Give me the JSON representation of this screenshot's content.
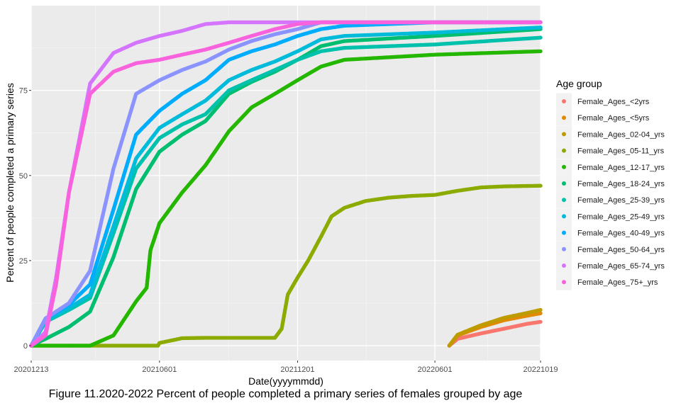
{
  "chart_data": {
    "type": "scatter",
    "xlabel": "Date(yyyymmdd)",
    "ylabel": "Percent of people completed a primary series",
    "x_ticks": [
      "20201213",
      "20210601",
      "20211201",
      "20220601",
      "20221019"
    ],
    "y_ticks": [
      0,
      25,
      50,
      75
    ],
    "xlim": [
      "20201213",
      "20221019"
    ],
    "ylim": [
      0,
      100
    ],
    "grid": true,
    "legend_title": "Age group",
    "legend_position": "right",
    "series": [
      {
        "name": "Female_Ages_<2yrs",
        "color": "#F8766D",
        "points": [
          [
            "20220620",
            0
          ],
          [
            "20220701",
            2
          ],
          [
            "20220801",
            3.6
          ],
          [
            "20220901",
            5
          ],
          [
            "20221001",
            6.4
          ],
          [
            "20221019",
            7
          ]
        ]
      },
      {
        "name": "Female_Ages_<5yrs",
        "color": "#E18A00",
        "points": [
          [
            "20220620",
            0
          ],
          [
            "20220701",
            3
          ],
          [
            "20220801",
            5.5
          ],
          [
            "20220901",
            7.5
          ],
          [
            "20221001",
            8.8
          ],
          [
            "20221019",
            9.5
          ]
        ]
      },
      {
        "name": "Female_Ages_02-04_yrs",
        "color": "#BE9C00",
        "points": [
          [
            "20220620",
            0
          ],
          [
            "20220701",
            3.2
          ],
          [
            "20220801",
            6
          ],
          [
            "20220901",
            8.2
          ],
          [
            "20221001",
            9.6
          ],
          [
            "20221019",
            10.5
          ]
        ]
      },
      {
        "name": "Female_Ages_05-11_yrs",
        "color": "#8CAB00",
        "points": [
          [
            "20201213",
            0
          ],
          [
            "20210530",
            0
          ],
          [
            "20210601",
            0.8
          ],
          [
            "20210701",
            2.2
          ],
          [
            "20210801",
            2.3
          ],
          [
            "20210901",
            2.3
          ],
          [
            "20211101",
            2.3
          ],
          [
            "20211110",
            5
          ],
          [
            "20211118",
            15
          ],
          [
            "20211201",
            20
          ],
          [
            "20211215",
            25
          ],
          [
            "20220101",
            32
          ],
          [
            "20220115",
            38
          ],
          [
            "20220201",
            40.5
          ],
          [
            "20220301",
            42.5
          ],
          [
            "20220401",
            43.5
          ],
          [
            "20220501",
            44
          ],
          [
            "20220601",
            44.3
          ],
          [
            "20220701",
            45.5
          ],
          [
            "20220801",
            46.5
          ],
          [
            "20220901",
            46.8
          ],
          [
            "20221019",
            47
          ]
        ]
      },
      {
        "name": "Female_Ages_12-17_yrs",
        "color": "#24B700",
        "points": [
          [
            "20201213",
            0
          ],
          [
            "20210301",
            0
          ],
          [
            "20210401",
            3
          ],
          [
            "20210501",
            13
          ],
          [
            "20210515",
            17
          ],
          [
            "20210520",
            28
          ],
          [
            "20210601",
            36
          ],
          [
            "20210701",
            45
          ],
          [
            "20210801",
            53
          ],
          [
            "20210901",
            63
          ],
          [
            "20211001",
            70
          ],
          [
            "20211101",
            74
          ],
          [
            "20211201",
            78
          ],
          [
            "20220101",
            82
          ],
          [
            "20220201",
            84
          ],
          [
            "20220601",
            85.5
          ],
          [
            "20221019",
            86.5
          ]
        ]
      },
      {
        "name": "Female_Ages_18-24_yrs",
        "color": "#00BE70",
        "points": [
          [
            "20201213",
            0
          ],
          [
            "20210101",
            2
          ],
          [
            "20210201",
            5.5
          ],
          [
            "20210301",
            10
          ],
          [
            "20210401",
            26
          ],
          [
            "20210501",
            46
          ],
          [
            "20210601",
            57
          ],
          [
            "20210701",
            62
          ],
          [
            "20210801",
            66
          ],
          [
            "20210901",
            74
          ],
          [
            "20211001",
            77.5
          ],
          [
            "20211101",
            80.5
          ],
          [
            "20211201",
            84
          ],
          [
            "20220101",
            88
          ],
          [
            "20220201",
            89.5
          ],
          [
            "20220601",
            91
          ],
          [
            "20221019",
            93
          ]
        ]
      },
      {
        "name": "Female_Ages_25-39_yrs",
        "color": "#00C1AB",
        "points": [
          [
            "20201213",
            0
          ],
          [
            "20210101",
            7
          ],
          [
            "20210201",
            10.5
          ],
          [
            "20210301",
            14
          ],
          [
            "20210401",
            33
          ],
          [
            "20210501",
            52
          ],
          [
            "20210601",
            61
          ],
          [
            "20210701",
            65
          ],
          [
            "20210801",
            68
          ],
          [
            "20210901",
            75
          ],
          [
            "20211001",
            78
          ],
          [
            "20211101",
            81
          ],
          [
            "20211201",
            84
          ],
          [
            "20220101",
            86.5
          ],
          [
            "20220201",
            87.5
          ],
          [
            "20220601",
            88.5
          ],
          [
            "20221019",
            90.5
          ]
        ]
      },
      {
        "name": "Female_Ages_25-49_yrs",
        "color": "#00BBDA",
        "points": [
          [
            "20201213",
            0
          ],
          [
            "20210101",
            7.5
          ],
          [
            "20210201",
            11
          ],
          [
            "20210301",
            15
          ],
          [
            "20210401",
            35
          ],
          [
            "20210501",
            55
          ],
          [
            "20210601",
            64
          ],
          [
            "20210701",
            68
          ],
          [
            "20210801",
            72
          ],
          [
            "20210901",
            78
          ],
          [
            "20211001",
            81
          ],
          [
            "20211101",
            83.5
          ],
          [
            "20211201",
            86.5
          ],
          [
            "20220101",
            90
          ],
          [
            "20220201",
            91
          ],
          [
            "20220601",
            92
          ],
          [
            "20221019",
            93.5
          ]
        ]
      },
      {
        "name": "Female_Ages_40-49_yrs",
        "color": "#00ACFC",
        "points": [
          [
            "20201213",
            0
          ],
          [
            "20210101",
            8
          ],
          [
            "20210201",
            12
          ],
          [
            "20210301",
            18
          ],
          [
            "20210401",
            40
          ],
          [
            "20210501",
            62
          ],
          [
            "20210601",
            69
          ],
          [
            "20210701",
            74
          ],
          [
            "20210801",
            78
          ],
          [
            "20210901",
            84
          ],
          [
            "20211001",
            86.5
          ],
          [
            "20211101",
            88.5
          ],
          [
            "20211201",
            91
          ],
          [
            "20220101",
            93
          ],
          [
            "20220201",
            94
          ],
          [
            "20220601",
            95
          ],
          [
            "20221019",
            95
          ]
        ]
      },
      {
        "name": "Female_Ages_50-64_yrs",
        "color": "#8B93FF",
        "points": [
          [
            "20201213",
            0
          ],
          [
            "20210101",
            8
          ],
          [
            "20210201",
            12.5
          ],
          [
            "20210301",
            22
          ],
          [
            "20210401",
            52
          ],
          [
            "20210501",
            74
          ],
          [
            "20210601",
            78
          ],
          [
            "20210701",
            81
          ],
          [
            "20210801",
            83.5
          ],
          [
            "20210901",
            87
          ],
          [
            "20211001",
            89.5
          ],
          [
            "20211101",
            91.5
          ],
          [
            "20211201",
            93
          ],
          [
            "20220101",
            95
          ],
          [
            "20220601",
            95
          ],
          [
            "20221019",
            95
          ]
        ]
      },
      {
        "name": "Female_Ages_65-74_yrs",
        "color": "#D575FE",
        "points": [
          [
            "20201213",
            0
          ],
          [
            "20210101",
            4
          ],
          [
            "20210115",
            20
          ],
          [
            "20210201",
            45
          ],
          [
            "20210301",
            77
          ],
          [
            "20210401",
            86
          ],
          [
            "20210501",
            89
          ],
          [
            "20210601",
            91
          ],
          [
            "20210701",
            92.5
          ],
          [
            "20210801",
            94.5
          ],
          [
            "20210901",
            95
          ],
          [
            "20221019",
            95
          ]
        ]
      },
      {
        "name": "Female_Ages_75+_yrs",
        "color": "#F962DD",
        "points": [
          [
            "20201213",
            0
          ],
          [
            "20210101",
            3
          ],
          [
            "20210115",
            18
          ],
          [
            "20210201",
            45
          ],
          [
            "20210301",
            74
          ],
          [
            "20210401",
            80.5
          ],
          [
            "20210501",
            83
          ],
          [
            "20210601",
            84
          ],
          [
            "20210701",
            85.5
          ],
          [
            "20210801",
            87
          ],
          [
            "20210901",
            89
          ],
          [
            "20211001",
            91
          ],
          [
            "20211101",
            93
          ],
          [
            "20211201",
            94.5
          ],
          [
            "20220101",
            95
          ],
          [
            "20221019",
            95
          ]
        ]
      }
    ],
    "legend_colors": [
      "#F8766D",
      "#E18A00",
      "#BE9C00",
      "#8CAB00",
      "#24B700",
      "#00BE70",
      "#00C1AB",
      "#00BBDA",
      "#00ACFC",
      "#8B93FF",
      "#D575FE",
      "#F962DD"
    ]
  },
  "caption": "Figure 11.2020-2022 Percent of people completed a primary series of females grouped by age"
}
